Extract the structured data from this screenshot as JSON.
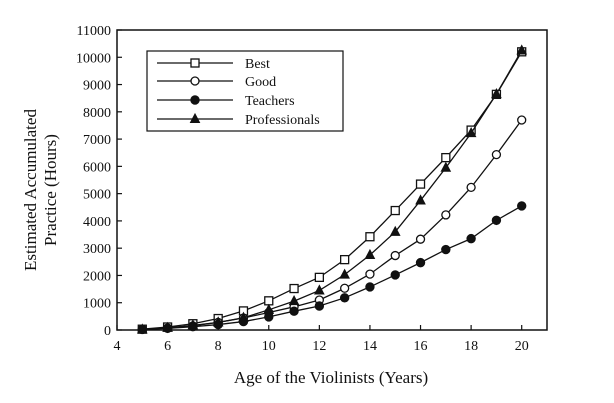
{
  "chart_data": {
    "type": "line",
    "title": "",
    "xlabel": "Age of the Violinists (Years)",
    "ylabel": [
      "Estimated Accumulated",
      "Practice (Hours)"
    ],
    "xlim": [
      4,
      21
    ],
    "ylim": [
      0,
      11000
    ],
    "xticks": [
      4,
      6,
      8,
      10,
      12,
      14,
      16,
      18,
      20
    ],
    "yticks": [
      0,
      1000,
      2000,
      3000,
      4000,
      5000,
      6000,
      7000,
      8000,
      9000,
      10000,
      11000
    ],
    "grid": false,
    "legend_position": "top-left",
    "x": [
      5,
      6,
      7,
      8,
      9,
      10,
      11,
      12,
      13,
      14,
      15,
      16,
      17,
      18,
      19,
      20
    ],
    "series": [
      {
        "name": "Best",
        "marker": "open-square",
        "values": [
          30,
          110,
          230,
          420,
          700,
          1070,
          1520,
          1930,
          2580,
          3420,
          4380,
          5350,
          6320,
          7330,
          8640,
          10200
        ]
      },
      {
        "name": "Good",
        "marker": "open-circle",
        "values": [
          25,
          70,
          150,
          280,
          440,
          640,
          850,
          1100,
          1530,
          2050,
          2730,
          3330,
          4220,
          5230,
          6430,
          7700
        ]
      },
      {
        "name": "Teachers",
        "marker": "filled-circle",
        "values": [
          20,
          60,
          120,
          200,
          310,
          480,
          690,
          880,
          1180,
          1580,
          2020,
          2470,
          2950,
          3350,
          4020,
          4550
        ]
      },
      {
        "name": "Professionals",
        "marker": "filled-triangle",
        "values": [
          20,
          80,
          170,
          280,
          450,
          740,
          1060,
          1450,
          2030,
          2750,
          3600,
          4750,
          5950,
          7220,
          8650,
          10250
        ]
      }
    ]
  }
}
